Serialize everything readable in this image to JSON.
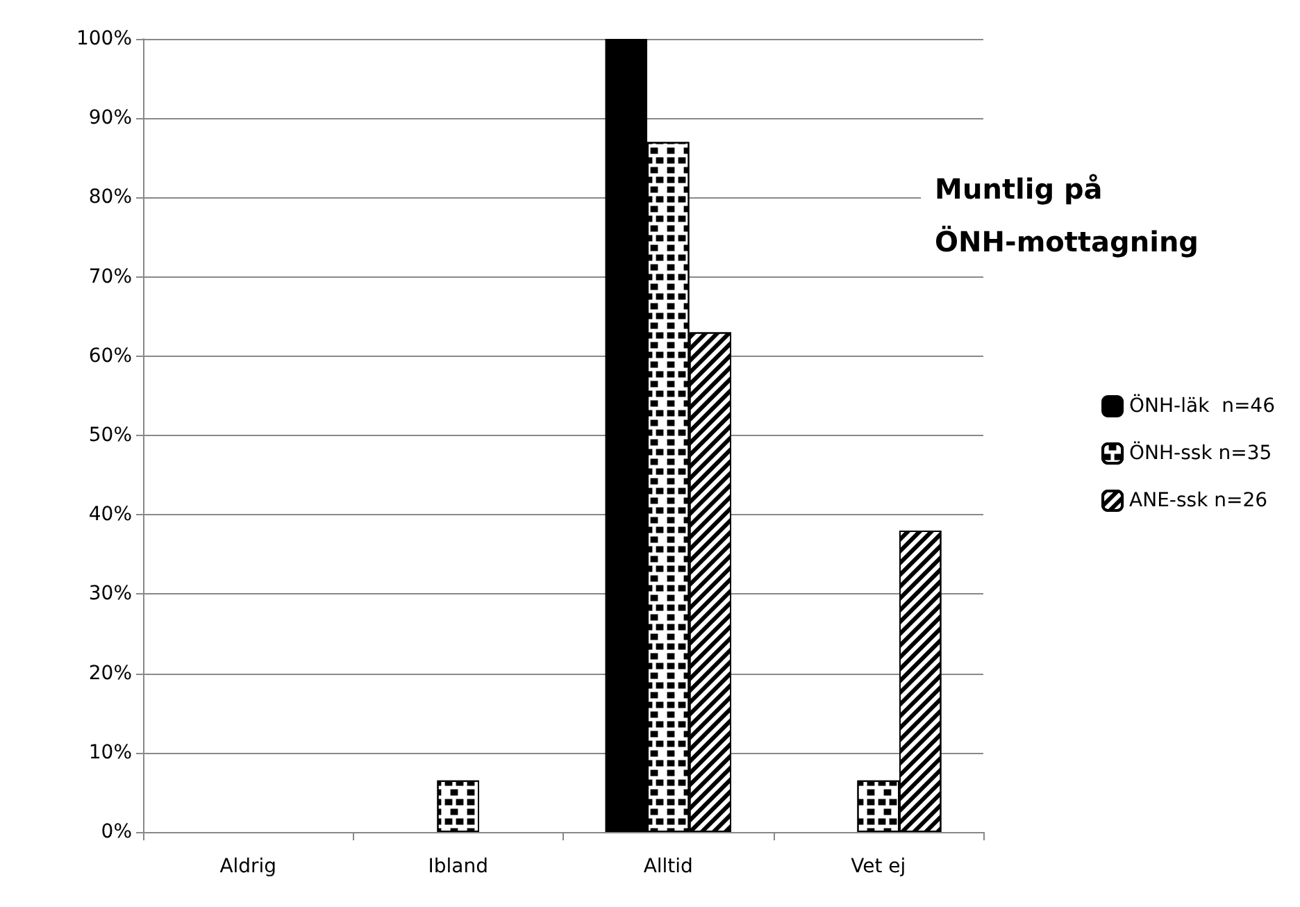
{
  "chart_data": {
    "type": "bar",
    "title": "Muntlig på\nÖNH-mottagning",
    "categories": [
      "Aldrig",
      "Ibland",
      "Alltid",
      "Vet ej"
    ],
    "series": [
      {
        "name": "ÖNH-läk  n=46",
        "color": "#000000",
        "values": [
          0,
          0,
          100,
          0
        ]
      },
      {
        "name": "ÖNH-ssk n=35",
        "color": "#ffffff",
        "values": [
          0,
          6.5,
          87,
          6.5
        ]
      },
      {
        "name": "ANE-ssk n=26",
        "color": "#ffffff",
        "values": [
          0,
          0,
          63,
          38
        ]
      }
    ],
    "ylim": [
      0,
      100
    ],
    "yticks": [
      {
        "value": 0,
        "label": "0%"
      },
      {
        "value": 10,
        "label": "10%"
      },
      {
        "value": 20,
        "label": "20%"
      },
      {
        "value": 30,
        "label": "30%"
      },
      {
        "value": 40,
        "label": "40%"
      },
      {
        "value": 50,
        "label": "50%"
      },
      {
        "value": 60,
        "label": "60%"
      },
      {
        "value": 70,
        "label": "70%"
      },
      {
        "value": 80,
        "label": "80%"
      },
      {
        "value": 90,
        "label": "90%"
      },
      {
        "value": 100,
        "label": "100%"
      }
    ],
    "grid": "y",
    "legend": "right"
  }
}
